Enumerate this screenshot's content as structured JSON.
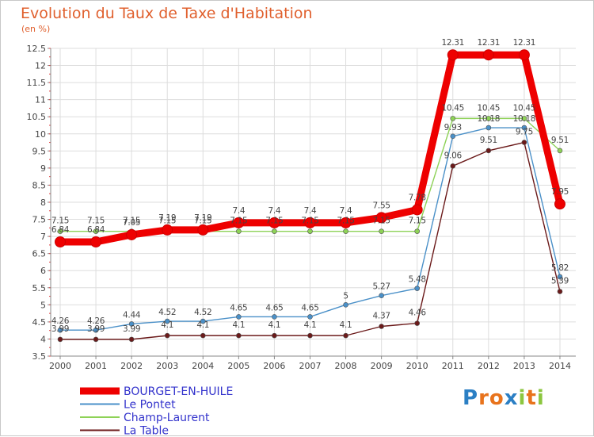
{
  "chart_data": {
    "type": "line",
    "title": "Evolution du Taux de Taxe d'Habitation",
    "subtitle": "(en %)",
    "x": [
      "2000",
      "2001",
      "2002",
      "2003",
      "2004",
      "2005",
      "2006",
      "2007",
      "2008",
      "2009",
      "2010",
      "2011",
      "2012",
      "2013",
      "2014"
    ],
    "ylim": [
      3.5,
      12.5
    ],
    "yticks": [
      "3.5",
      "4",
      "4.5",
      "5",
      "5.5",
      "6",
      "6.5",
      "7",
      "7.5",
      "8",
      "8.5",
      "9",
      "9.5",
      "10",
      "10.5",
      "11",
      "11.5",
      "12",
      "12.5"
    ],
    "grid": true,
    "series": [
      {
        "name": "BOURGET-EN-HUILE",
        "color": "#ee0000",
        "values": [
          6.84,
          6.84,
          7.05,
          7.19,
          7.19,
          7.4,
          7.4,
          7.4,
          7.4,
          7.55,
          7.78,
          12.31,
          12.31,
          12.31,
          7.95
        ],
        "labels": [
          "6.84",
          "6.84",
          "7.05",
          "7.19",
          "7.19",
          "7.4",
          "7.4",
          "7.4",
          "7.4",
          "7.55",
          "7.78",
          "12.31",
          "12.31",
          "12.31",
          "7.95"
        ]
      },
      {
        "name": "Le Pontet",
        "color": "#4a90c8",
        "values": [
          4.26,
          4.26,
          4.44,
          4.52,
          4.52,
          4.65,
          4.65,
          4.65,
          5,
          5.27,
          5.48,
          9.93,
          10.18,
          10.18,
          5.82
        ],
        "labels": [
          "4.26",
          "4.26",
          "4.44",
          "4.52",
          "4.52",
          "4.65",
          "4.65",
          "4.65",
          "5",
          "5.27",
          "5.48",
          "9.93",
          "10.18",
          "10.18",
          "5.82"
        ]
      },
      {
        "name": "Champ-Laurent",
        "color": "#8ed257",
        "values": [
          7.15,
          7.15,
          7.15,
          7.15,
          7.15,
          7.15,
          7.15,
          7.15,
          7.15,
          7.15,
          7.15,
          10.45,
          10.45,
          10.45,
          9.51
        ],
        "labels": [
          "7.15",
          "7.15",
          "7.15",
          "7.15",
          "7.15",
          "7.15",
          "7.15",
          "7.15",
          "7.15",
          "7.15",
          "7.15",
          "10.45",
          "10.45",
          "10.45",
          "9.51"
        ]
      },
      {
        "name": "La Table",
        "color": "#6b1a1a",
        "values": [
          3.99,
          3.99,
          3.99,
          4.1,
          4.1,
          4.1,
          4.1,
          4.1,
          4.1,
          4.37,
          4.46,
          9.06,
          9.51,
          9.75,
          5.39
        ],
        "labels": [
          "3.99",
          "3.99",
          "3.99",
          "4.1",
          "4.1",
          "4.1",
          "4.1",
          "4.1",
          "4.1",
          "4.37",
          "4.46",
          "9.06",
          "9.51",
          "9.75",
          "5.39"
        ]
      }
    ],
    "legend": "bottom-left"
  },
  "logo": {
    "text": "Proxiti",
    "letters": [
      "P",
      "r",
      "o",
      "x",
      "i",
      "t",
      "i"
    ],
    "colors": [
      "#2b7fc4",
      "#e8731c",
      "#e8731c",
      "#2b7fc4",
      "#8cc63f",
      "#e8731c",
      "#8cc63f"
    ]
  }
}
